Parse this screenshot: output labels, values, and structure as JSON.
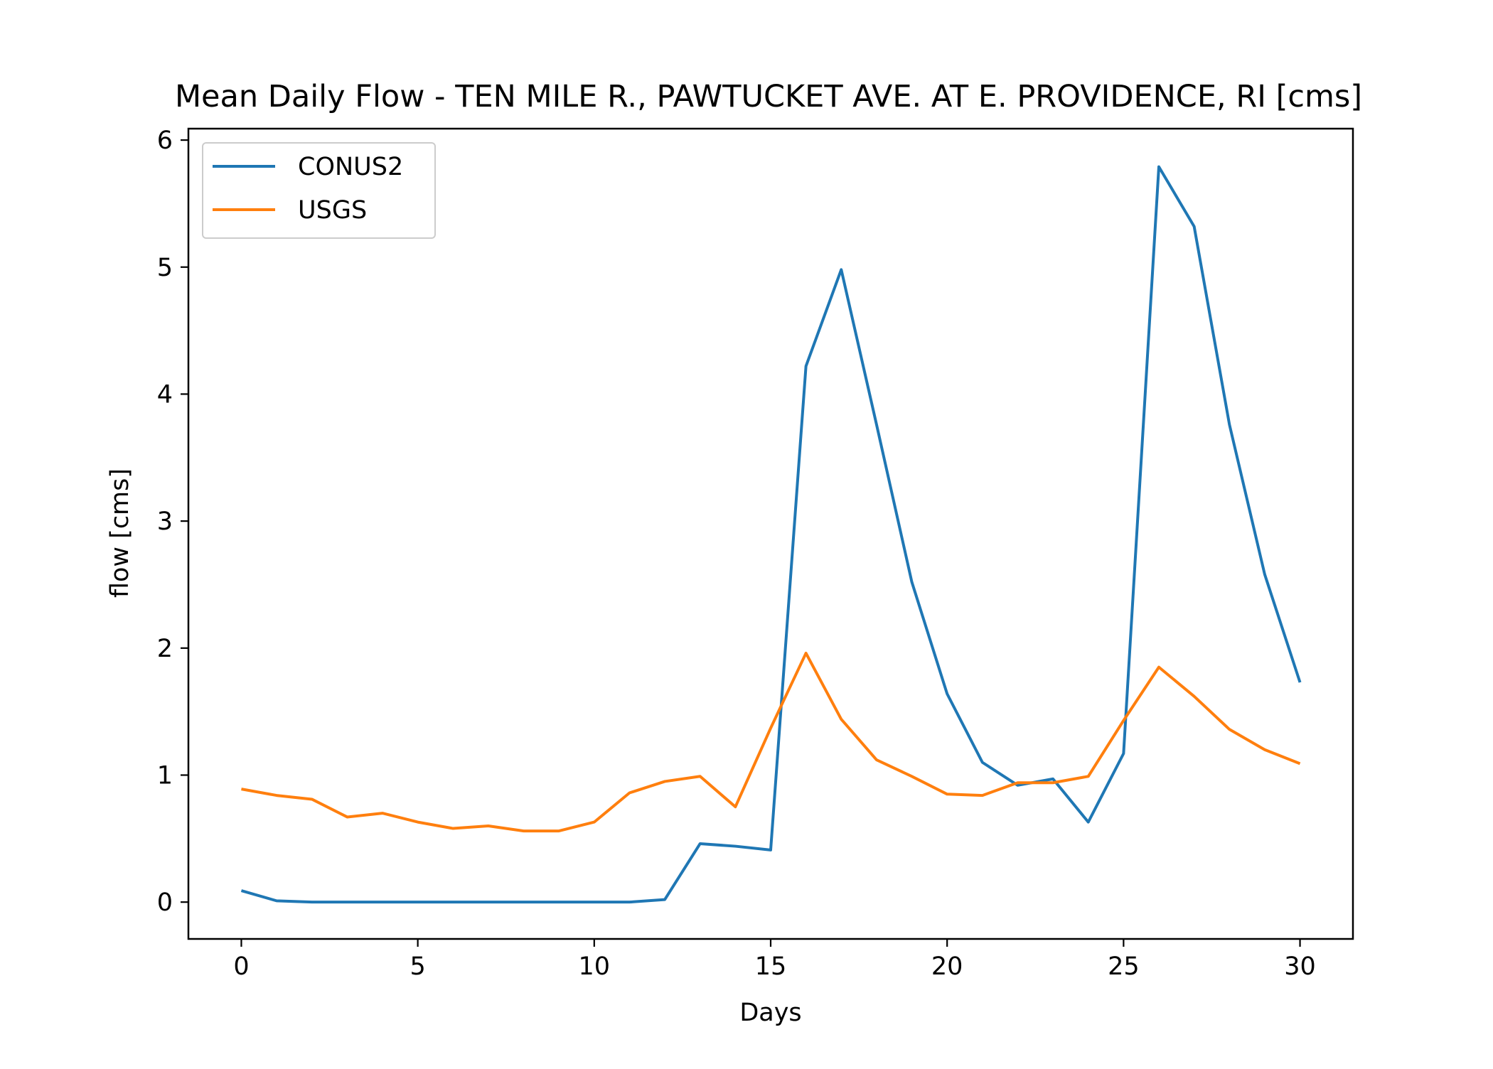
{
  "chart_data": {
    "type": "line",
    "title": "Mean Daily Flow - TEN MILE R., PAWTUCKET AVE. AT E. PROVIDENCE, RI [cms]",
    "xlabel": "Days",
    "ylabel": "flow [cms]",
    "xlim": [
      -1.5,
      31.5
    ],
    "ylim": [
      -0.29,
      6.09
    ],
    "x_ticks": [
      0,
      5,
      10,
      15,
      20,
      25,
      30
    ],
    "y_ticks": [
      0,
      1,
      2,
      3,
      4,
      5,
      6
    ],
    "grid": false,
    "legend_position": "upper-left",
    "x": [
      0,
      1,
      2,
      3,
      4,
      5,
      6,
      7,
      8,
      9,
      10,
      11,
      12,
      13,
      14,
      15,
      16,
      17,
      18,
      19,
      20,
      21,
      22,
      23,
      24,
      25,
      26,
      27,
      28,
      29,
      30
    ],
    "series": [
      {
        "name": "CONUS2",
        "color": "#1f77b4",
        "values": [
          0.09,
          0.01,
          0.0,
          0.0,
          0.0,
          0.0,
          0.0,
          0.0,
          0.0,
          0.0,
          0.0,
          0.0,
          0.02,
          0.46,
          0.44,
          0.41,
          4.22,
          4.98,
          3.76,
          2.52,
          1.64,
          1.1,
          0.92,
          0.97,
          0.63,
          1.17,
          5.79,
          5.32,
          3.76,
          2.58,
          1.73
        ]
      },
      {
        "name": "USGS",
        "color": "#ff7f0e",
        "values": [
          0.89,
          0.84,
          0.81,
          0.67,
          0.7,
          0.63,
          0.58,
          0.6,
          0.56,
          0.56,
          0.63,
          0.86,
          0.95,
          0.99,
          0.75,
          1.37,
          1.96,
          1.44,
          1.12,
          0.99,
          0.85,
          0.84,
          0.94,
          0.94,
          0.99,
          1.43,
          1.85,
          1.62,
          1.36,
          1.2,
          1.09
        ]
      }
    ]
  }
}
